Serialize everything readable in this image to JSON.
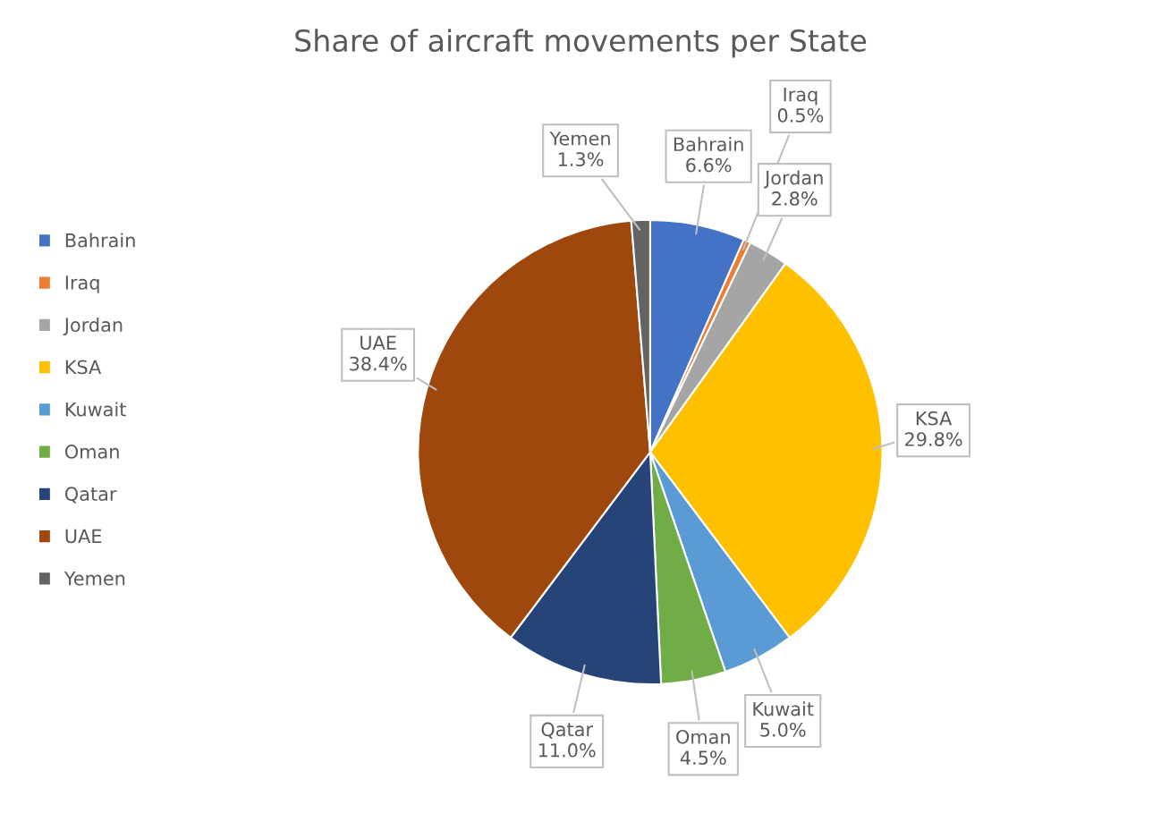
{
  "chart_data": {
    "type": "pie",
    "title": "Share of aircraft movements per State",
    "categories": [
      "Bahrain",
      "Iraq",
      "Jordan",
      "KSA",
      "Kuwait",
      "Oman",
      "Qatar",
      "UAE",
      "Yemen"
    ],
    "values": [
      6.6,
      0.5,
      2.8,
      29.8,
      5.0,
      4.5,
      11.0,
      38.4,
      1.3
    ],
    "value_labels": [
      "6.6%",
      "0.5%",
      "2.8%",
      "29.8%",
      "5.0%",
      "4.5%",
      "11.0%",
      "38.4%",
      "1.3%"
    ],
    "colors": [
      "#4472c4",
      "#ed7d31",
      "#a5a5a5",
      "#ffc000",
      "#5b9bd5",
      "#70ad47",
      "#264478",
      "#9e480e",
      "#636363"
    ],
    "legend": "left"
  }
}
